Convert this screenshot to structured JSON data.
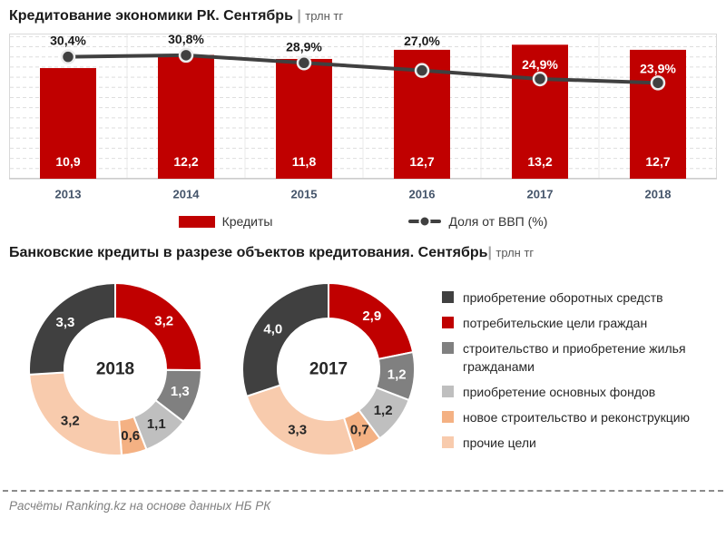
{
  "header1": {
    "title": "Кредитование экономики РК. Сентябрь",
    "separator": " | ",
    "unit": "трлн тг"
  },
  "header2": {
    "title": "Банковские кредиты в разрезе объектов кредитования. Сентябрь",
    "separator": "| ",
    "unit": "трлн тг"
  },
  "chart_data": [
    {
      "type": "bar",
      "subtype": "bar-line-combo",
      "title": "Кредитование экономики РК. Сентябрь | трлн тг",
      "categories": [
        "2013",
        "2014",
        "2015",
        "2016",
        "2017",
        "2018"
      ],
      "series": [
        {
          "name": "Кредиты",
          "render": "bar",
          "axis": "left",
          "color": "#C00000",
          "values": [
            10.9,
            12.2,
            11.8,
            12.7,
            13.2,
            12.7
          ]
        },
        {
          "name": "Доля от ВВП (%)",
          "render": "line",
          "axis": "right",
          "color": "#404040",
          "values": [
            30.4,
            30.8,
            28.9,
            27.0,
            24.9,
            23.9
          ]
        }
      ],
      "ylim": [
        0,
        14.3
      ],
      "y2lim": [
        0,
        36.2
      ],
      "grid": "horizontal-dashed",
      "legend_position": "bottom"
    },
    {
      "type": "pie",
      "subtype": "donut",
      "label": "2018",
      "slices": [
        {
          "category": "потребительские цели граждан",
          "value": 3.2,
          "color": "#C00000"
        },
        {
          "category": "строительство и приобретение жилья гражданами",
          "value": 1.3,
          "color": "#808080"
        },
        {
          "category": "приобретение основных фондов",
          "value": 1.1,
          "color": "#BFBFBF"
        },
        {
          "category": "новое строительство и реконструкцию",
          "value": 0.6,
          "color": "#F4B183"
        },
        {
          "category": "прочие цели",
          "value": 3.2,
          "color": "#F8CBAD"
        },
        {
          "category": "приобретение оборотных средств",
          "value": 3.3,
          "color": "#404040"
        }
      ]
    },
    {
      "type": "pie",
      "subtype": "donut",
      "label": "2017",
      "slices": [
        {
          "category": "потребительские цели граждан",
          "value": 2.9,
          "color": "#C00000"
        },
        {
          "category": "строительство и приобретение жилья гражданами",
          "value": 1.2,
          "color": "#808080"
        },
        {
          "category": "приобретение основных фондов",
          "value": 1.2,
          "color": "#BFBFBF"
        },
        {
          "category": "новое строительство и реконструкцию",
          "value": 0.7,
          "color": "#F4B183"
        },
        {
          "category": "прочие цели",
          "value": 3.3,
          "color": "#F8CBAD"
        },
        {
          "category": "приобретение оборотных средств",
          "value": 4.0,
          "color": "#404040"
        }
      ]
    }
  ],
  "donut_legend": {
    "items": [
      {
        "label": "приобретение оборотных средств",
        "color": "#404040"
      },
      {
        "label": "потребительские цели граждан",
        "color": "#C00000"
      },
      {
        "label": "строительство и приобретение жилья гражданами",
        "color": "#808080"
      },
      {
        "label": "приобретение основных фондов",
        "color": "#BFBFBF"
      },
      {
        "label": "новое строительство и реконструкцию",
        "color": "#F4B183"
      },
      {
        "label": "прочие цели",
        "color": "#F8CBAD"
      }
    ]
  },
  "footer": {
    "text": "Расчёты Ranking.kz на основе данных НБ РК"
  }
}
